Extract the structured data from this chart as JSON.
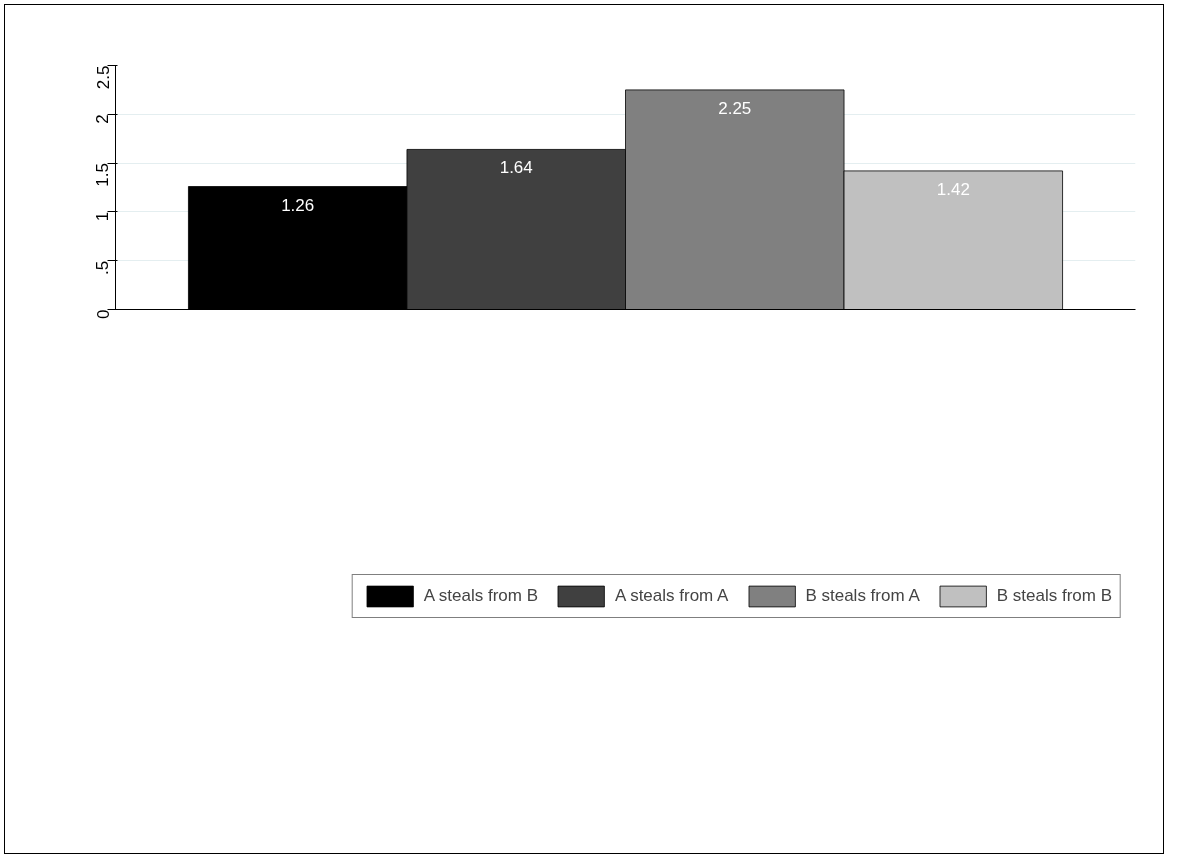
{
  "chart_data": {
    "type": "bar",
    "categories": [
      null
    ],
    "series": [
      {
        "name": "A steals from B",
        "color": "#000000",
        "values": [
          1.26
        ]
      },
      {
        "name": "A steals from A",
        "color": "#404040",
        "values": [
          1.64
        ]
      },
      {
        "name": "B steals from A",
        "color": "#808080",
        "values": [
          2.25
        ]
      },
      {
        "name": "B steals from B",
        "color": "#c0c0c0",
        "values": [
          1.42
        ]
      }
    ],
    "ylim": [
      0,
      2.5
    ],
    "yticks": [
      0,
      {
        "value": 0.5,
        "label": ".5"
      },
      1,
      {
        "value": 1.5,
        "label": "1.5"
      },
      2,
      {
        "value": 2.5,
        "label": "2.5"
      }
    ],
    "grid": "y",
    "legend": "bottom",
    "data_labels": true
  }
}
